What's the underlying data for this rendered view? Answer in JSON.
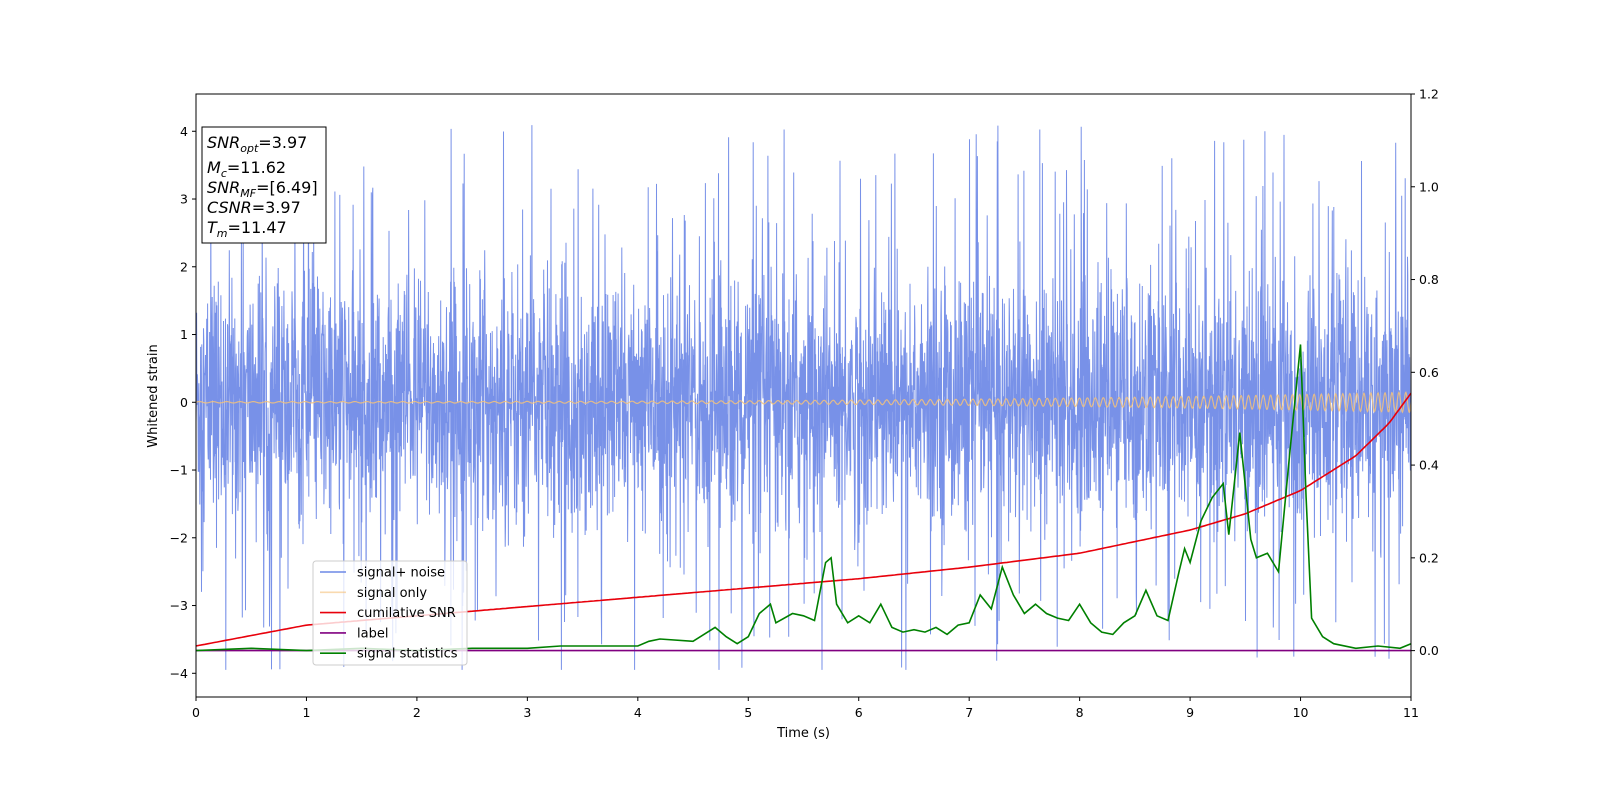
{
  "chart_data": {
    "type": "line",
    "xlabel": "Time (s)",
    "ylabel": "Whitened strain",
    "xlim": [
      0,
      11
    ],
    "ylim": [
      -4.35,
      4.55
    ],
    "y2lim": [
      -0.1,
      1.2
    ],
    "x_ticks": [
      "0",
      "1",
      "2",
      "3",
      "4",
      "5",
      "6",
      "7",
      "8",
      "9",
      "10",
      "11"
    ],
    "y_ticks": [
      "−4",
      "−3",
      "−2",
      "−1",
      "0",
      "1",
      "2",
      "3",
      "4"
    ],
    "y2_ticks": [
      "0.0",
      "0.2",
      "0.4",
      "0.6",
      "0.8",
      "1.0",
      "1.2"
    ],
    "grid": false,
    "legend_position": "lower-left",
    "info_box": {
      "lines": [
        {
          "sym": "SNR",
          "sub": "opt",
          "val": "=3.97"
        },
        {
          "sym": "M",
          "sub": "c",
          "val": "=11.62"
        },
        {
          "sym": "SNR",
          "sub": "MF",
          "val": "=[6.49]"
        },
        {
          "sym": "CSNR",
          "sub": "",
          "val": "=3.97"
        },
        {
          "sym": "T",
          "sub": "m",
          "val": "=11.47"
        }
      ]
    },
    "series": [
      {
        "name": "signal+ noise",
        "color": "#6d88e6",
        "axis": "left",
        "style": "noise",
        "description_values": {
          "band_low": -2.3,
          "band_high": 2.3,
          "spike_min": -3.95,
          "spike_max": 4.15
        }
      },
      {
        "name": "signal only",
        "color": "#f5c27a",
        "axis": "left",
        "style": "chirp",
        "amplitude_start": 0.01,
        "amplitude_end": 0.15
      },
      {
        "name": "cumilative SNR",
        "color": "#e8000b",
        "axis": "right",
        "x": [
          0,
          1,
          2,
          3,
          4,
          5,
          6,
          7,
          8,
          9,
          9.5,
          10,
          10.5,
          10.8,
          11
        ],
        "values": [
          0.01,
          0.055,
          0.075,
          0.095,
          0.115,
          0.135,
          0.155,
          0.18,
          0.21,
          0.26,
          0.295,
          0.345,
          0.42,
          0.49,
          0.555
        ]
      },
      {
        "name": "label",
        "color": "#800080",
        "axis": "right",
        "x": [
          0,
          11
        ],
        "values": [
          0.0,
          0.0
        ]
      },
      {
        "name": "signal statistics",
        "color": "#008000",
        "axis": "right",
        "x": [
          0,
          0.5,
          1,
          1.5,
          2,
          2.5,
          3,
          3.3,
          3.5,
          4,
          4.1,
          4.2,
          4.5,
          4.7,
          4.8,
          4.9,
          5.0,
          5.1,
          5.2,
          5.25,
          5.4,
          5.5,
          5.6,
          5.7,
          5.75,
          5.8,
          5.9,
          6.0,
          6.1,
          6.2,
          6.3,
          6.4,
          6.5,
          6.6,
          6.7,
          6.8,
          6.9,
          7.0,
          7.1,
          7.2,
          7.3,
          7.4,
          7.5,
          7.6,
          7.7,
          7.8,
          7.9,
          8.0,
          8.1,
          8.2,
          8.3,
          8.4,
          8.5,
          8.6,
          8.7,
          8.8,
          8.9,
          8.95,
          9.0,
          9.1,
          9.2,
          9.3,
          9.35,
          9.45,
          9.55,
          9.6,
          9.7,
          9.8,
          9.9,
          10.0,
          10.05,
          10.1,
          10.2,
          10.3,
          10.5,
          10.7,
          10.9,
          11.0
        ],
        "values": [
          0.0,
          0.005,
          0.0,
          0.005,
          0.0,
          0.005,
          0.005,
          0.01,
          0.01,
          0.01,
          0.02,
          0.025,
          0.02,
          0.05,
          0.03,
          0.015,
          0.03,
          0.08,
          0.1,
          0.06,
          0.08,
          0.075,
          0.065,
          0.19,
          0.2,
          0.1,
          0.06,
          0.075,
          0.06,
          0.1,
          0.05,
          0.04,
          0.045,
          0.04,
          0.05,
          0.035,
          0.055,
          0.06,
          0.12,
          0.09,
          0.18,
          0.12,
          0.08,
          0.1,
          0.08,
          0.07,
          0.065,
          0.1,
          0.06,
          0.04,
          0.035,
          0.06,
          0.075,
          0.13,
          0.075,
          0.065,
          0.17,
          0.22,
          0.19,
          0.28,
          0.33,
          0.36,
          0.25,
          0.47,
          0.24,
          0.2,
          0.21,
          0.17,
          0.42,
          0.66,
          0.33,
          0.07,
          0.03,
          0.015,
          0.005,
          0.01,
          0.005,
          0.015
        ]
      }
    ]
  }
}
